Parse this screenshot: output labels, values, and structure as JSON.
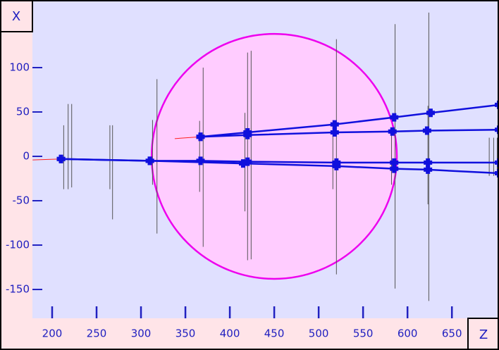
{
  "chart_data": {
    "type": "line",
    "x_label": "Z",
    "y_label": "X",
    "xlim": [
      177.8,
      703
    ],
    "ylim": [
      -182.5,
      174.6
    ],
    "xticks": [
      200,
      250,
      300,
      350,
      400,
      450,
      500,
      550,
      600,
      650
    ],
    "yticks": [
      -150,
      -100,
      -50,
      0,
      50,
      100
    ],
    "circle": {
      "z": 450,
      "x": 0,
      "r": 138,
      "color": "#ffccff",
      "edge_color": "#ee00ee"
    },
    "hits": {
      "color": "#555555",
      "z": [
        213,
        218,
        222,
        265,
        268,
        313,
        318,
        366,
        370,
        417,
        420,
        424,
        516,
        520,
        582,
        586,
        623,
        624,
        692,
        697,
        701
      ],
      "x0": [
        35,
        59,
        59,
        35,
        35,
        41,
        87,
        40,
        100,
        49,
        117,
        119,
        37,
        132,
        25,
        149,
        57,
        162,
        21,
        21,
        21
      ],
      "x1": [
        -37,
        -37,
        -35,
        -37,
        -71,
        -32,
        -87,
        -40,
        -102,
        -62,
        -117,
        -116,
        -37,
        -133,
        -32,
        -149,
        -54,
        -163,
        -22,
        -22,
        -22
      ]
    },
    "series": [
      {
        "color": "#ff2020",
        "markers": false,
        "x": [
          178,
          210
        ],
        "values": [
          -4,
          -3
        ]
      },
      {
        "color": "#ff2020",
        "markers": false,
        "x": [
          338,
          367
        ],
        "values": [
          20,
          22
        ]
      },
      {
        "color": "#1010dd",
        "markers": true,
        "x": [
          210,
          310,
          367,
          420,
          520,
          585,
          623,
          703
        ],
        "values": [
          -3,
          -5,
          -5,
          -6,
          -7,
          -7,
          -7,
          -7
        ]
      },
      {
        "color": "#1010dd",
        "markers": true,
        "x": [
          210,
          310,
          415,
          520,
          585,
          623,
          703
        ],
        "values": [
          -3,
          -5,
          -8,
          -11,
          -14,
          -15,
          -19
        ]
      },
      {
        "color": "#1010dd",
        "markers": true,
        "x": [
          367,
          420,
          518,
          585,
          626,
          703
        ],
        "values": [
          22,
          27,
          36,
          44,
          49,
          58
        ]
      },
      {
        "color": "#1010dd",
        "markers": true,
        "x": [
          367,
          420,
          518,
          583,
          622,
          703
        ],
        "values": [
          22,
          24,
          27,
          28,
          29,
          30
        ]
      }
    ]
  }
}
